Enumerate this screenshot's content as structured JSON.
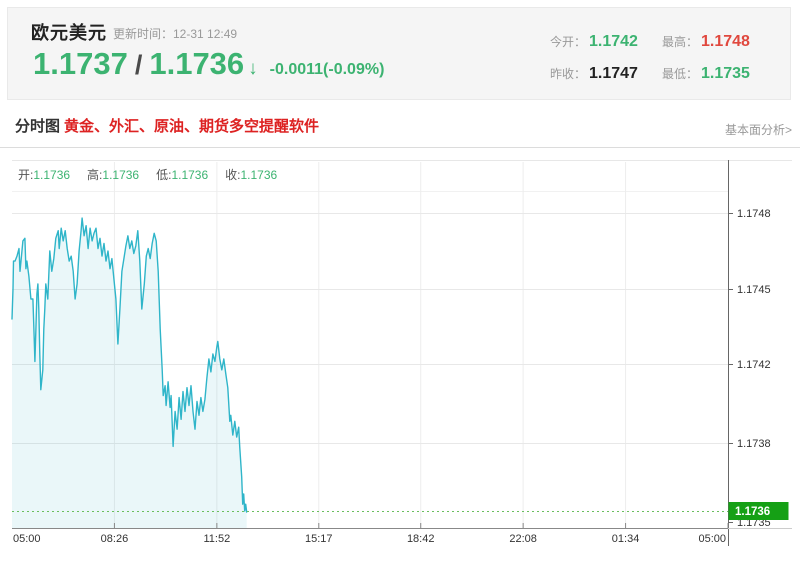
{
  "header": {
    "symbol": "欧元美元",
    "update_label": "更新时间：12-31 12:49",
    "bid": "1.1737",
    "separator": "/",
    "ask": "1.1736",
    "arrow": "↓",
    "change": "-0.0011(-0.09%)",
    "stats": [
      {
        "label": "今开：",
        "value": "1.1742",
        "color": "#3cb371"
      },
      {
        "label": "最高：",
        "value": "1.1748",
        "color": "#e0483e"
      },
      {
        "label": "昨收：",
        "value": "1.1747",
        "color": "#222222"
      },
      {
        "label": "最低：",
        "value": "1.1735",
        "color": "#3cb371"
      }
    ]
  },
  "toolbar": {
    "tab_label": "分时图",
    "promo_link": "黄金、外汇、原油、期货多空提醒软件",
    "fundamental_link": "基本面分析>"
  },
  "legend": {
    "items": [
      {
        "label": "开:",
        "value": "1.1736"
      },
      {
        "label": "高:",
        "value": "1.1736"
      },
      {
        "label": "低:",
        "value": "1.1736"
      },
      {
        "label": "收:",
        "value": "1.1736"
      }
    ]
  },
  "colors": {
    "price_green": "#3cb371",
    "price_red": "#e0483e",
    "neutral_dark": "#222222",
    "line_teal": "#2fb5c9",
    "area_fill": "rgba(47,181,201,0.10)",
    "current_line_green": "#6abf5e",
    "badge_green": "#15a015",
    "link_red": "#dd2222",
    "muted_gray": "#999999",
    "tick_text": "#333333"
  },
  "chart_data": {
    "type": "area",
    "title": "欧元美元 分时图",
    "x_ticks": [
      "05:00",
      "08:26",
      "11:52",
      "15:17",
      "18:42",
      "22:08",
      "01:34",
      "05:00"
    ],
    "x_tick_minutes": [
      0,
      206,
      412,
      617,
      822,
      1028,
      1234,
      1440
    ],
    "x_range_minutes": 1440,
    "y_ticks": [
      1.1748,
      1.1745,
      1.1742,
      1.1738,
      1.1735
    ],
    "ylim": [
      1.1735,
      1.1748
    ],
    "grid": true,
    "current_price": 1.1736,
    "series": [
      {
        "name": "price",
        "points": [
          [
            0,
            1.17438
          ],
          [
            2,
            1.1745
          ],
          [
            3,
            1.17461
          ],
          [
            6,
            1.17461
          ],
          [
            10,
            1.17463
          ],
          [
            14,
            1.17466
          ],
          [
            16,
            1.17457
          ],
          [
            18,
            1.17461
          ],
          [
            22,
            1.17469
          ],
          [
            26,
            1.1747
          ],
          [
            28,
            1.17458
          ],
          [
            30,
            1.17461
          ],
          [
            34,
            1.17455
          ],
          [
            38,
            1.17446
          ],
          [
            42,
            1.17446
          ],
          [
            44,
            1.17434
          ],
          [
            46,
            1.17421
          ],
          [
            48,
            1.17434
          ],
          [
            50,
            1.17448
          ],
          [
            52,
            1.17452
          ],
          [
            54,
            1.17442
          ],
          [
            56,
            1.17424
          ],
          [
            58,
            1.17407
          ],
          [
            62,
            1.17417
          ],
          [
            64,
            1.17434
          ],
          [
            66,
            1.17442
          ],
          [
            68,
            1.17452
          ],
          [
            72,
            1.17446
          ],
          [
            76,
            1.17465
          ],
          [
            80,
            1.17457
          ],
          [
            84,
            1.17462
          ],
          [
            88,
            1.1747
          ],
          [
            93,
            1.17473
          ],
          [
            95,
            1.17466
          ],
          [
            99,
            1.17474
          ],
          [
            103,
            1.17469
          ],
          [
            107,
            1.17473
          ],
          [
            111,
            1.17466
          ],
          [
            115,
            1.17461
          ],
          [
            119,
            1.17463
          ],
          [
            123,
            1.17457
          ],
          [
            127,
            1.17446
          ],
          [
            131,
            1.17452
          ],
          [
            135,
            1.17465
          ],
          [
            139,
            1.17473
          ],
          [
            141,
            1.17482
          ],
          [
            145,
            1.17471
          ],
          [
            149,
            1.17475
          ],
          [
            153,
            1.17466
          ],
          [
            157,
            1.17474
          ],
          [
            161,
            1.17469
          ],
          [
            165,
            1.17472
          ],
          [
            169,
            1.17474
          ],
          [
            173,
            1.17466
          ],
          [
            177,
            1.1747
          ],
          [
            181,
            1.17463
          ],
          [
            185,
            1.17468
          ],
          [
            189,
            1.17461
          ],
          [
            193,
            1.17465
          ],
          [
            197,
            1.17458
          ],
          [
            201,
            1.17462
          ],
          [
            205,
            1.17454
          ],
          [
            209,
            1.17446
          ],
          [
            213,
            1.17428
          ],
          [
            217,
            1.17442
          ],
          [
            221,
            1.17457
          ],
          [
            225,
            1.17462
          ],
          [
            229,
            1.17467
          ],
          [
            233,
            1.17471
          ],
          [
            237,
            1.17466
          ],
          [
            241,
            1.17469
          ],
          [
            245,
            1.17464
          ],
          [
            249,
            1.17467
          ],
          [
            253,
            1.17473
          ],
          [
            257,
            1.17461
          ],
          [
            261,
            1.17442
          ],
          [
            266,
            1.17452
          ],
          [
            270,
            1.17463
          ],
          [
            274,
            1.17466
          ],
          [
            278,
            1.17462
          ],
          [
            282,
            1.17468
          ],
          [
            286,
            1.17472
          ],
          [
            290,
            1.17469
          ],
          [
            294,
            1.17457
          ],
          [
            298,
            1.17434
          ],
          [
            302,
            1.17417
          ],
          [
            304,
            1.17404
          ],
          [
            308,
            1.17409
          ],
          [
            310,
            1.17399
          ],
          [
            314,
            1.17411
          ],
          [
            318,
            1.17398
          ],
          [
            320,
            1.17404
          ],
          [
            324,
            1.17379
          ],
          [
            328,
            1.17396
          ],
          [
            332,
            1.17387
          ],
          [
            336,
            1.17403
          ],
          [
            340,
            1.17392
          ],
          [
            344,
            1.17406
          ],
          [
            348,
            1.17396
          ],
          [
            352,
            1.17408
          ],
          [
            356,
            1.17399
          ],
          [
            360,
            1.17409
          ],
          [
            364,
            1.17396
          ],
          [
            368,
            1.17387
          ],
          [
            372,
            1.17401
          ],
          [
            376,
            1.17394
          ],
          [
            380,
            1.17403
          ],
          [
            384,
            1.17396
          ],
          [
            388,
            1.17402
          ],
          [
            392,
            1.17413
          ],
          [
            396,
            1.17422
          ],
          [
            400,
            1.17416
          ],
          [
            404,
            1.17424
          ],
          [
            408,
            1.17421
          ],
          [
            412,
            1.17427
          ],
          [
            414,
            1.17429
          ],
          [
            418,
            1.17422
          ],
          [
            422,
            1.17417
          ],
          [
            426,
            1.17422
          ],
          [
            430,
            1.17415
          ],
          [
            434,
            1.17408
          ],
          [
            438,
            1.17391
          ],
          [
            440,
            1.17394
          ],
          [
            444,
            1.17384
          ],
          [
            448,
            1.17391
          ],
          [
            452,
            1.17383
          ],
          [
            456,
            1.17388
          ],
          [
            458,
            1.17379
          ],
          [
            462,
            1.1737
          ],
          [
            464,
            1.17362
          ],
          [
            466,
            1.17365
          ],
          [
            468,
            1.1736
          ],
          [
            470,
            1.17362
          ],
          [
            472,
            1.17359
          ]
        ]
      }
    ]
  }
}
